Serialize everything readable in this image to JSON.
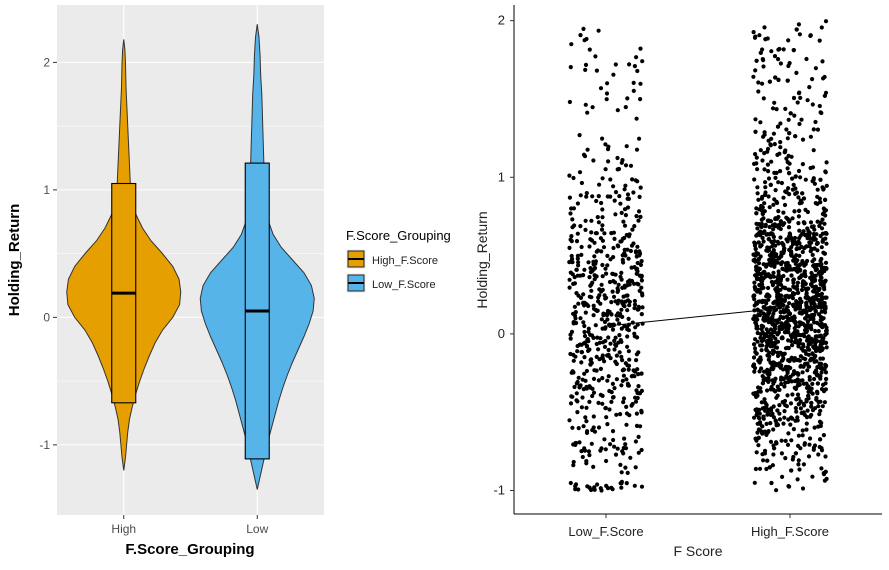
{
  "chart_data": [
    {
      "type": "violin",
      "title": "",
      "xlabel": "F.Score_Grouping",
      "ylabel": "Holding_Return",
      "categories": [
        "High",
        "Low"
      ],
      "yticks": [
        -1,
        0,
        1,
        2
      ],
      "ylim": [
        -1.55,
        2.45
      ],
      "grid": true,
      "legend": {
        "title": "F.Score_Grouping",
        "placement": "right",
        "entries": [
          "High_F.Score",
          "Low_F.Score"
        ]
      },
      "series": [
        {
          "name": "High_F.Score",
          "category": "High",
          "color": "#E69F00",
          "box": {
            "q1": -0.67,
            "median": 0.19,
            "q3": 1.05
          },
          "range": [
            -1.2,
            2.18
          ],
          "density": [
            [
              -1.2,
              0.0
            ],
            [
              -1.1,
              0.03
            ],
            [
              -1.0,
              0.05
            ],
            [
              -0.9,
              0.07
            ],
            [
              -0.8,
              0.1
            ],
            [
              -0.7,
              0.15
            ],
            [
              -0.6,
              0.21
            ],
            [
              -0.5,
              0.28
            ],
            [
              -0.4,
              0.36
            ],
            [
              -0.3,
              0.45
            ],
            [
              -0.2,
              0.55
            ],
            [
              -0.1,
              0.68
            ],
            [
              0.0,
              0.86
            ],
            [
              0.1,
              0.98
            ],
            [
              0.2,
              1.0
            ],
            [
              0.3,
              0.97
            ],
            [
              0.4,
              0.86
            ],
            [
              0.5,
              0.68
            ],
            [
              0.6,
              0.48
            ],
            [
              0.7,
              0.33
            ],
            [
              0.8,
              0.22
            ],
            [
              0.9,
              0.15
            ],
            [
              1.0,
              0.12
            ],
            [
              1.1,
              0.11
            ],
            [
              1.2,
              0.1
            ],
            [
              1.3,
              0.09
            ],
            [
              1.4,
              0.08
            ],
            [
              1.5,
              0.07
            ],
            [
              1.6,
              0.06
            ],
            [
              1.7,
              0.05
            ],
            [
              1.8,
              0.04
            ],
            [
              1.9,
              0.035
            ],
            [
              2.0,
              0.03
            ],
            [
              2.1,
              0.02
            ],
            [
              2.18,
              0.0
            ]
          ]
        },
        {
          "name": "Low_F.Score",
          "category": "Low",
          "color": "#56B4E9",
          "box": {
            "q1": -1.11,
            "median": 0.05,
            "q3": 1.21
          },
          "range": [
            -1.35,
            2.3
          ],
          "density": [
            [
              -1.35,
              0.0
            ],
            [
              -1.25,
              0.05
            ],
            [
              -1.15,
              0.1
            ],
            [
              -1.05,
              0.15
            ],
            [
              -0.95,
              0.2
            ],
            [
              -0.85,
              0.26
            ],
            [
              -0.75,
              0.32
            ],
            [
              -0.65,
              0.38
            ],
            [
              -0.55,
              0.45
            ],
            [
              -0.45,
              0.53
            ],
            [
              -0.35,
              0.62
            ],
            [
              -0.25,
              0.72
            ],
            [
              -0.15,
              0.82
            ],
            [
              -0.05,
              0.91
            ],
            [
              0.05,
              0.98
            ],
            [
              0.15,
              1.0
            ],
            [
              0.25,
              0.95
            ],
            [
              0.35,
              0.82
            ],
            [
              0.45,
              0.62
            ],
            [
              0.55,
              0.42
            ],
            [
              0.65,
              0.28
            ],
            [
              0.75,
              0.2
            ],
            [
              0.85,
              0.16
            ],
            [
              0.95,
              0.14
            ],
            [
              1.05,
              0.13
            ],
            [
              1.15,
              0.12
            ],
            [
              1.3,
              0.11
            ],
            [
              1.45,
              0.1
            ],
            [
              1.6,
              0.09
            ],
            [
              1.75,
              0.08
            ],
            [
              1.9,
              0.06
            ],
            [
              2.05,
              0.05
            ],
            [
              2.2,
              0.03
            ],
            [
              2.3,
              0.0
            ]
          ]
        }
      ]
    },
    {
      "type": "scatter",
      "title": "",
      "xlabel": "F Score",
      "ylabel": "Holding_Return",
      "categories": [
        "Low_F.Score",
        "High_F.Score"
      ],
      "yticks": [
        -1,
        0,
        1,
        2
      ],
      "ylim": [
        -1.15,
        2.1
      ],
      "grid": false,
      "jitter": 0.2,
      "point_color": "#000000",
      "groups": [
        {
          "category": "Low_F.Score",
          "n": 650,
          "mean": 0.05,
          "ymin": -1.0,
          "ymax": 1.95,
          "core": [
            -0.85,
            1.05
          ]
        },
        {
          "category": "High_F.Score",
          "n": 1700,
          "mean": 0.17,
          "ymin": -1.0,
          "ymax": 2.0,
          "core": [
            -0.6,
            0.95
          ]
        }
      ],
      "mean_line": {
        "from": [
          "Low_F.Score",
          0.05
        ],
        "to": [
          "High_F.Score",
          0.17
        ]
      }
    }
  ]
}
